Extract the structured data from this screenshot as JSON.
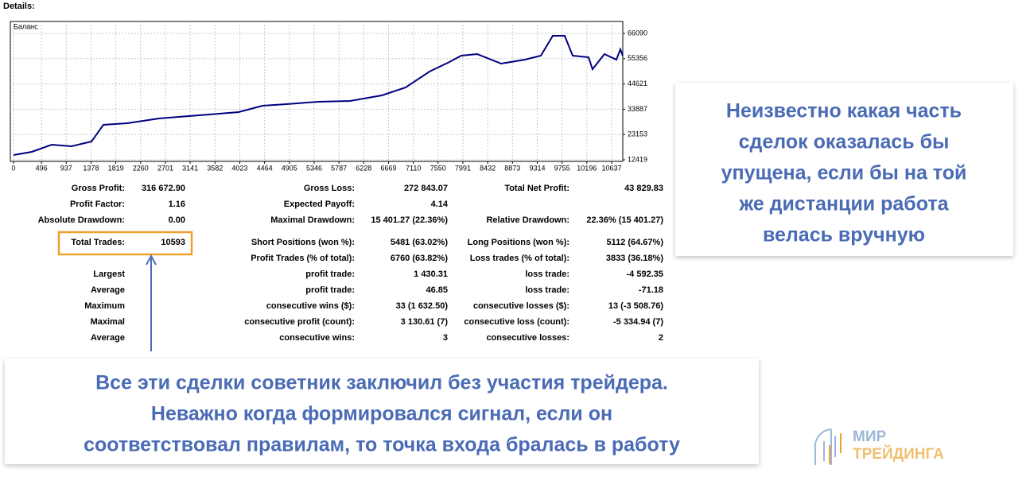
{
  "header": {
    "title": "Details:"
  },
  "chart_data": {
    "type": "line",
    "x": [
      0,
      325,
      679,
      1032,
      1386,
      1598,
      2023,
      2588,
      3296,
      4003,
      4427,
      4851,
      5417,
      5983,
      6549,
      6973,
      7398,
      7751,
      7963,
      8246,
      8671,
      9095,
      9378,
      9590,
      9802,
      9944,
      10226,
      10297,
      10509,
      10721,
      10792,
      10834
    ],
    "series": [
      {
        "name": "Баланс",
        "color": "#000080",
        "values": [
          14444,
          15794,
          18832,
          18157,
          20182,
          27269,
          27944,
          29969,
          31319,
          32669,
          35369,
          36044,
          37057,
          37394,
          39757,
          43132,
          49882,
          53932,
          56632,
          57307,
          53257,
          54944,
          56632,
          65069,
          65069,
          56632,
          55957,
          50894,
          57307,
          54944,
          59332,
          56632
        ]
      }
    ],
    "xlim": [
      -57,
      10835
    ],
    "ylim": [
      11744,
      71153
    ],
    "xticks": [
      0,
      496,
      937,
      1378,
      1819,
      2260,
      2701,
      3141,
      3582,
      4023,
      4464,
      4905,
      5346,
      5787,
      6228,
      6669,
      7110,
      7550,
      7991,
      8432,
      8873,
      9314,
      9755,
      10196,
      10637
    ],
    "yticks": [
      12419,
      23153,
      33887,
      44621,
      55356,
      66090
    ],
    "grid": true
  },
  "table": {
    "rows": [
      [
        "Gross Profit:",
        "316 672.90",
        "Gross Loss:",
        "272 843.07",
        "Total Net Profit:",
        "43 829.83"
      ],
      [
        "Profit Factor:",
        "1.16",
        "Expected Payoff:",
        "4.14",
        null,
        null
      ],
      [
        "Absolute Drawdown:",
        "0.00",
        "Maximal Drawdown:",
        "15 401.27 (22.36%)",
        "Relative Drawdown:",
        "22.36% (15 401.27)"
      ],
      [
        "Total Trades:",
        "10593",
        "Short Positions (won %):",
        "5481 (63.02%)",
        "Long Positions (won %):",
        "5112 (64.67%)"
      ],
      [
        null,
        null,
        "Profit Trades (% of total):",
        "6760 (63.82%)",
        "Loss trades (% of total):",
        "3833 (36.18%)"
      ],
      [
        "Largest",
        null,
        "profit trade:",
        "1 430.31",
        "loss trade:",
        "-4 592.35"
      ],
      [
        "Average",
        null,
        "profit trade:",
        "46.85",
        "loss trade:",
        "-71.18"
      ],
      [
        "Maximum",
        null,
        "consecutive wins ($):",
        "33 (1 632.50)",
        "consecutive losses ($):",
        "13 (-3 508.76)"
      ],
      [
        "Maximal",
        null,
        "consecutive profit (count):",
        "3 130.61 (7)",
        "consecutive loss (count):",
        "-5 334.94 (7)"
      ],
      [
        "Average",
        null,
        "consecutive wins:",
        "3",
        "consecutive losses:",
        "2"
      ]
    ]
  },
  "callouts": [
    {
      "lines": [
        "Неизвестно какая часть",
        "сделок оказалась бы",
        "упущена, если бы на той",
        "же дистанции работа",
        "велась вручную"
      ]
    },
    {
      "lines": [
        "Все эти сделки советник заключил без участия трейдера.",
        "Неважно когда формировался сигнал, если он",
        "соответствовал правилам, то точка входа бралась в работу"
      ]
    }
  ],
  "logo": {
    "line1": "МИР",
    "line2": "ТРЕЙДИНГА"
  }
}
